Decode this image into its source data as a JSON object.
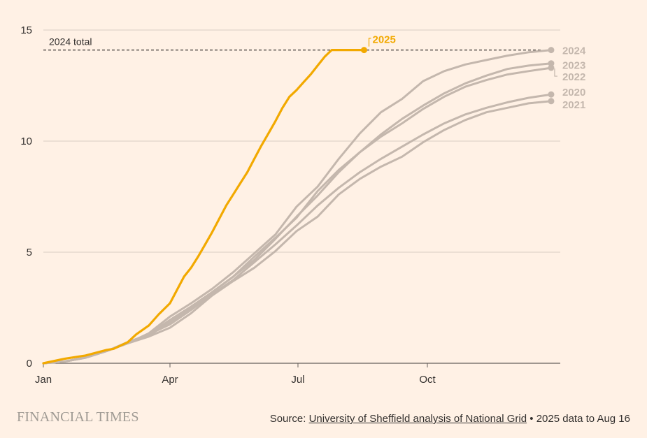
{
  "chart_data": {
    "type": "line",
    "title": "",
    "xlabel": "",
    "ylabel": "",
    "x_unit": "day_of_year",
    "xlim": [
      0,
      365
    ],
    "ylim": [
      0,
      15
    ],
    "y_ticks": [
      0,
      5,
      10,
      15
    ],
    "x_ticks": [
      {
        "label": "Jan",
        "day": 0
      },
      {
        "label": "Apr",
        "day": 90
      },
      {
        "label": "Jul",
        "day": 181
      },
      {
        "label": "Oct",
        "day": 273
      }
    ],
    "grid": true,
    "reference_line": {
      "label": "2024 total",
      "value": 14.1
    },
    "highlight_color": "#f2a900",
    "muted_color": "#c4b7ad",
    "series": [
      {
        "name": "2020",
        "color": "#c4b7ad",
        "end_label": "2020",
        "x": [
          0,
          15,
          30,
          45,
          60,
          75,
          90,
          105,
          120,
          135,
          150,
          165,
          180,
          195,
          210,
          225,
          240,
          255,
          270,
          285,
          300,
          315,
          330,
          345,
          361
        ],
        "y": [
          0,
          0.08,
          0.25,
          0.55,
          0.95,
          1.3,
          1.75,
          2.4,
          3.1,
          3.75,
          4.55,
          5.35,
          6.2,
          7.1,
          7.9,
          8.6,
          9.2,
          9.75,
          10.3,
          10.8,
          11.2,
          11.5,
          11.75,
          11.95,
          12.1
        ]
      },
      {
        "name": "2021",
        "color": "#c4b7ad",
        "end_label": "2021",
        "x": [
          0,
          15,
          30,
          45,
          60,
          75,
          90,
          105,
          120,
          135,
          150,
          165,
          180,
          195,
          210,
          225,
          240,
          255,
          270,
          285,
          300,
          315,
          330,
          345,
          361
        ],
        "y": [
          0,
          0.08,
          0.25,
          0.55,
          0.9,
          1.2,
          1.6,
          2.25,
          3.05,
          3.7,
          4.3,
          5.05,
          5.95,
          6.6,
          7.6,
          8.3,
          8.85,
          9.3,
          9.95,
          10.5,
          10.95,
          11.3,
          11.5,
          11.7,
          11.8
        ]
      },
      {
        "name": "2022",
        "color": "#c4b7ad",
        "end_label": "2022",
        "x": [
          0,
          15,
          30,
          45,
          60,
          75,
          90,
          105,
          120,
          135,
          150,
          165,
          180,
          195,
          210,
          225,
          240,
          255,
          270,
          285,
          300,
          315,
          330,
          345,
          361
        ],
        "y": [
          0,
          0.08,
          0.25,
          0.55,
          0.9,
          1.3,
          1.95,
          2.55,
          3.2,
          3.9,
          4.8,
          5.65,
          6.55,
          7.75,
          8.7,
          9.5,
          10.2,
          10.8,
          11.45,
          12.0,
          12.45,
          12.75,
          13.0,
          13.15,
          13.3
        ]
      },
      {
        "name": "2023",
        "color": "#c4b7ad",
        "end_label": "2023",
        "x": [
          0,
          15,
          30,
          45,
          60,
          75,
          90,
          105,
          120,
          135,
          150,
          165,
          180,
          195,
          210,
          225,
          240,
          255,
          270,
          285,
          300,
          315,
          330,
          345,
          361
        ],
        "y": [
          0,
          0.08,
          0.25,
          0.55,
          0.9,
          1.25,
          1.85,
          2.5,
          3.2,
          3.9,
          4.65,
          5.6,
          6.6,
          7.55,
          8.6,
          9.5,
          10.3,
          11.0,
          11.6,
          12.15,
          12.6,
          12.95,
          13.25,
          13.4,
          13.5
        ]
      },
      {
        "name": "2024",
        "color": "#c4b7ad",
        "end_label": "2024",
        "x": [
          0,
          15,
          30,
          45,
          60,
          75,
          90,
          105,
          120,
          135,
          150,
          165,
          180,
          195,
          210,
          225,
          240,
          255,
          270,
          285,
          300,
          315,
          330,
          345,
          361
        ],
        "y": [
          0,
          0.08,
          0.25,
          0.55,
          0.9,
          1.35,
          2.1,
          2.7,
          3.35,
          4.1,
          4.95,
          5.8,
          7.05,
          7.95,
          9.2,
          10.35,
          11.3,
          11.9,
          12.7,
          13.15,
          13.45,
          13.65,
          13.85,
          14.0,
          14.1
        ]
      },
      {
        "name": "2025",
        "color": "#f2a900",
        "end_label": "2025",
        "x": [
          0,
          15,
          30,
          45,
          50,
          60,
          66,
          75,
          82,
          90,
          95,
          100,
          105,
          110,
          115,
          120,
          125,
          130,
          135,
          140,
          145,
          150,
          155,
          160,
          165,
          170,
          175,
          180,
          185,
          190,
          195,
          200,
          205,
          210,
          215,
          220,
          225,
          228
        ],
        "y": [
          0,
          0.2,
          0.35,
          0.6,
          0.65,
          0.95,
          1.3,
          1.7,
          2.2,
          2.7,
          3.3,
          3.9,
          4.3,
          4.8,
          5.35,
          5.9,
          6.5,
          7.1,
          7.6,
          8.1,
          8.6,
          9.2,
          9.8,
          10.35,
          10.9,
          11.5,
          12.0,
          12.3,
          12.65,
          13.0,
          13.4,
          13.8,
          14.1,
          14.1,
          14.1,
          14.1,
          14.1,
          14.1
        ]
      }
    ]
  },
  "footer": {
    "brand": "FINANCIAL TIMES",
    "source_prefix": "Source: ",
    "source_link": "University of Sheffield analysis of National Grid",
    "source_suffix": " • 2025 data to Aug 16"
  }
}
